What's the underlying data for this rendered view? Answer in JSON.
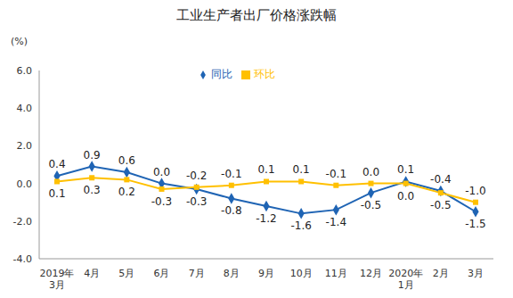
{
  "chart_data": {
    "type": "line",
    "title": "工业生产者出厂价格涨跌幅",
    "y_label": "(%)",
    "categories": [
      "2019年\n3月",
      "4月",
      "5月",
      "6月",
      "7月",
      "8月",
      "9月",
      "10月",
      "11月",
      "12月",
      "2020年\n1月",
      "2月",
      "3月"
    ],
    "series": [
      {
        "name": "同比",
        "color": "#1f64b4",
        "marker": "diamond",
        "values": [
          0.4,
          0.9,
          0.6,
          0.0,
          -0.3,
          -0.8,
          -1.2,
          -1.6,
          -1.4,
          -0.5,
          0.1,
          -0.4,
          -1.5
        ],
        "value_labels": [
          "0.4",
          "0.9",
          "0.6",
          "0.0",
          "-0.3",
          "-0.8",
          "-1.2",
          "-1.6",
          "-1.4",
          "-0.5",
          "0.1",
          "-0.4",
          "-1.5"
        ]
      },
      {
        "name": "环比",
        "color": "#ffc000",
        "marker": "square",
        "values": [
          0.1,
          0.3,
          0.2,
          -0.3,
          -0.2,
          -0.1,
          0.1,
          0.1,
          -0.1,
          0.0,
          0.0,
          -0.5,
          -1.0
        ],
        "value_labels": [
          "0.1",
          "0.3",
          "0.2",
          "-0.3",
          "-0.2",
          "-0.1",
          "0.1",
          "0.1",
          "-0.1",
          "0.0",
          "0.0",
          "-0.5",
          "-1.0"
        ]
      }
    ],
    "ylim": [
      -4,
      6
    ],
    "yticks": [
      {
        "value": -4,
        "label": "-4.0"
      },
      {
        "value": -2,
        "label": "-2.0"
      },
      {
        "value": 0,
        "label": "0.0"
      },
      {
        "value": 2,
        "label": "2.0"
      },
      {
        "value": 4,
        "label": "4.0"
      },
      {
        "value": 6,
        "label": "6.0"
      }
    ],
    "legend": "upper right",
    "data_labels": true,
    "grid": false
  }
}
